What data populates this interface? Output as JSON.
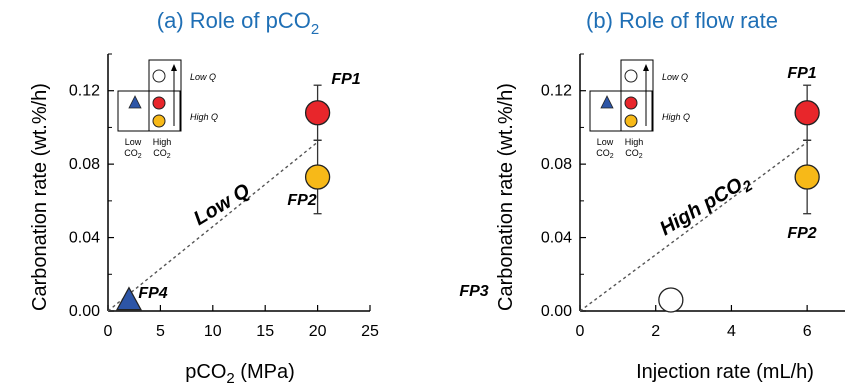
{
  "colors": {
    "title": "#1f6fb5",
    "red": "#e8262b",
    "yellow": "#f7b918",
    "blue": "#2d55a6",
    "white": "#ffffff"
  },
  "chart_data": [
    {
      "type": "scatter",
      "title": "(a) Role of pCO₂",
      "title_parts": {
        "main": "(a) Role of pCO",
        "sub": "2"
      },
      "xlabel": "pCO₂ (MPa)",
      "xlabel_parts": {
        "main": "pCO",
        "sub": "2",
        "rest": " (MPa)"
      },
      "ylabel": "Carbonation rate (wt.%/h)",
      "xlim": [
        0,
        25
      ],
      "ylim": [
        0,
        0.14
      ],
      "xticks": [
        "0",
        "5",
        "10",
        "15",
        "20",
        "25"
      ],
      "yticks": [
        "0.00",
        "0.04",
        "0.08",
        "0.12"
      ],
      "points": [
        {
          "label": "FP1",
          "x": 20,
          "y": 0.108,
          "marker": "circle",
          "color": "red",
          "err": 0.015
        },
        {
          "label": "FP2",
          "x": 20,
          "y": 0.073,
          "marker": "circle",
          "color": "yellow",
          "err": 0.02
        },
        {
          "label": "FP4",
          "x": 2,
          "y": 0.004,
          "marker": "triangle",
          "color": "blue"
        }
      ],
      "trend": {
        "label": "Low Q",
        "from": [
          0,
          0
        ],
        "to": [
          20,
          0.092
        ]
      }
    },
    {
      "type": "scatter",
      "title": "(b) Role of flow rate",
      "xlabel": "Injection rate (mL/h)",
      "ylabel": "Carbonation rate (wt.%/h)",
      "xlim": [
        0,
        7
      ],
      "ylim": [
        0,
        0.14
      ],
      "xticks": [
        "0",
        "2",
        "4",
        "6"
      ],
      "yticks": [
        "0.00",
        "0.04",
        "0.08",
        "0.12"
      ],
      "points": [
        {
          "label": "FP1",
          "x": 6,
          "y": 0.108,
          "marker": "circle",
          "color": "red",
          "err": 0.015
        },
        {
          "label": "FP2",
          "x": 6,
          "y": 0.073,
          "marker": "circle",
          "color": "yellow",
          "err": 0.02
        },
        {
          "label": "FP3",
          "x": 2.4,
          "y": 0.006,
          "marker": "circle",
          "color": "white"
        }
      ],
      "trend": {
        "label": "High pCO₂",
        "label_parts": {
          "main": "High pCO",
          "sub": "2"
        },
        "from": [
          0,
          0
        ],
        "to": [
          6,
          0.092
        ]
      }
    }
  ],
  "legend": {
    "low_q": "Low Q",
    "high_q": "High Q",
    "low_co2": {
      "line1": "Low",
      "line2": "CO",
      "sub": "2"
    },
    "high_co2": {
      "line1": "High",
      "line2": "CO",
      "sub": "2"
    }
  }
}
